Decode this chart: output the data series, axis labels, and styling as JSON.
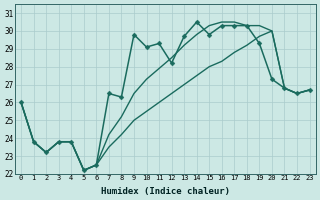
{
  "xlabel": "Humidex (Indice chaleur)",
  "bg_color": "#cce8e4",
  "grid_color": "#aacccc",
  "line_color": "#1a6b5e",
  "xlim": [
    -0.5,
    23.5
  ],
  "ylim": [
    22,
    31.5
  ],
  "yticks": [
    22,
    23,
    24,
    25,
    26,
    27,
    28,
    29,
    30,
    31
  ],
  "xticks": [
    0,
    1,
    2,
    3,
    4,
    5,
    6,
    7,
    8,
    9,
    10,
    11,
    12,
    13,
    14,
    15,
    16,
    17,
    18,
    19,
    20,
    21,
    22,
    23
  ],
  "series": [
    {
      "x": [
        0,
        1,
        2,
        3,
        4,
        5,
        6,
        7,
        8,
        9,
        10,
        11,
        12,
        13,
        14,
        15,
        16,
        17,
        18,
        19,
        20,
        21,
        22,
        23
      ],
      "y": [
        26.0,
        23.8,
        23.2,
        23.8,
        23.8,
        22.2,
        22.5,
        26.5,
        26.3,
        29.8,
        29.1,
        29.3,
        28.2,
        29.7,
        30.5,
        29.8,
        30.3,
        30.3,
        30.3,
        29.3,
        27.3,
        26.8,
        26.5,
        26.7
      ],
      "marker": "D",
      "markersize": 2.5,
      "linewidth": 1.1
    },
    {
      "x": [
        0,
        23
      ],
      "y": [
        26.0,
        26.7
      ],
      "marker": null,
      "markersize": 0,
      "linewidth": 1.0
    },
    {
      "x": [
        0,
        23
      ],
      "y": [
        26.0,
        26.7
      ],
      "marker": null,
      "markersize": 0,
      "linewidth": 1.0
    }
  ],
  "line2_x": [
    0,
    1,
    2,
    3,
    4,
    5,
    6,
    7,
    8,
    9,
    10,
    11,
    12,
    13,
    14,
    15,
    16,
    17,
    18,
    19,
    20,
    21,
    22,
    23
  ],
  "line2_y": [
    26.0,
    23.8,
    23.2,
    23.8,
    23.8,
    22.2,
    22.5,
    24.2,
    25.2,
    26.5,
    27.3,
    27.9,
    28.5,
    29.2,
    29.8,
    30.3,
    30.5,
    30.5,
    30.3,
    30.3,
    30.0,
    26.8,
    26.5,
    26.7
  ],
  "line3_x": [
    0,
    1,
    2,
    3,
    4,
    5,
    6,
    7,
    8,
    9,
    10,
    11,
    12,
    13,
    14,
    15,
    16,
    17,
    18,
    19,
    20,
    21,
    22,
    23
  ],
  "line3_y": [
    26.0,
    23.8,
    23.2,
    23.8,
    23.8,
    22.2,
    22.5,
    23.5,
    24.2,
    25.0,
    25.5,
    26.0,
    26.5,
    27.0,
    27.5,
    28.0,
    28.3,
    28.8,
    29.2,
    29.7,
    30.0,
    26.8,
    26.5,
    26.7
  ]
}
